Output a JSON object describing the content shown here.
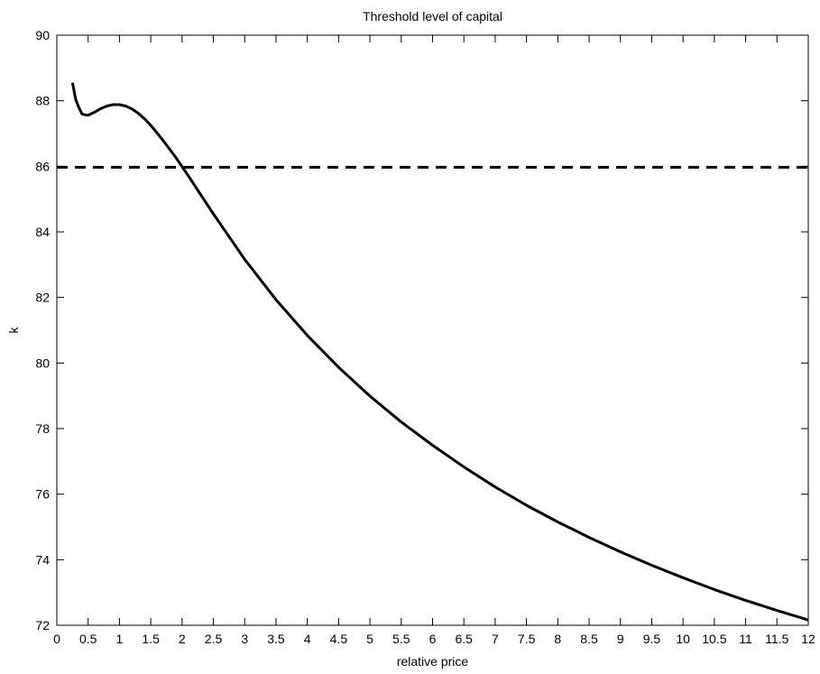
{
  "chart_data": {
    "type": "line",
    "title": "Threshold level of capital",
    "xlabel": "relative price",
    "ylabel": "k",
    "xlim": [
      0,
      12
    ],
    "ylim": [
      72,
      90
    ],
    "xticks": [
      0,
      0.5,
      1,
      1.5,
      2,
      2.5,
      3,
      3.5,
      4,
      4.5,
      5,
      5.5,
      6,
      6.5,
      7,
      7.5,
      8,
      8.5,
      9,
      9.5,
      10,
      10.5,
      11,
      11.5,
      12
    ],
    "yticks": [
      72,
      74,
      76,
      78,
      80,
      82,
      84,
      86,
      88,
      90
    ],
    "grid": false,
    "series": [
      {
        "style": "solid",
        "color": "#000000",
        "x": [
          0.25,
          0.3,
          0.35,
          0.4,
          0.45,
          0.5,
          0.6,
          0.7,
          0.8,
          0.9,
          1.0,
          1.1,
          1.2,
          1.3,
          1.4,
          1.5,
          1.6,
          1.7,
          1.8,
          1.9,
          2.0,
          2.1,
          2.2,
          2.5,
          3.0,
          3.5,
          4.0,
          4.5,
          5.0,
          5.5,
          6.0,
          6.5,
          7.0,
          7.5,
          8.0,
          8.5,
          9.0,
          9.5,
          10.0,
          10.5,
          11.0,
          11.5,
          12.0
        ],
        "y": [
          88.55,
          88.05,
          87.8,
          87.6,
          87.57,
          87.56,
          87.65,
          87.76,
          87.84,
          87.88,
          87.88,
          87.84,
          87.75,
          87.62,
          87.45,
          87.25,
          87.02,
          86.78,
          86.53,
          86.27,
          85.99,
          85.71,
          85.42,
          84.55,
          83.16,
          81.93,
          80.84,
          79.87,
          78.99,
          78.2,
          77.49,
          76.83,
          76.22,
          75.66,
          75.15,
          74.68,
          74.24,
          73.83,
          73.45,
          73.09,
          72.76,
          72.45,
          72.16
        ]
      },
      {
        "style": "dashed",
        "color": "#000000",
        "x": [
          0,
          12
        ],
        "y": [
          85.97,
          85.97
        ]
      }
    ]
  }
}
